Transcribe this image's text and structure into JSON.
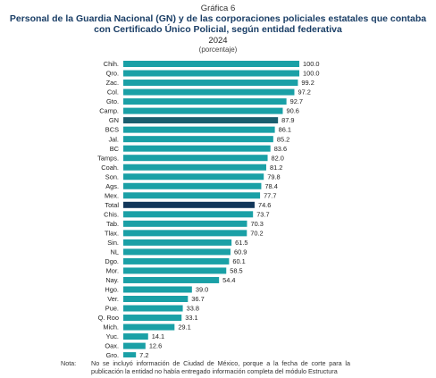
{
  "header": {
    "kicker": "Gráfica 6",
    "title_line1": "Personal de la Guardia Nacional (GN) y de las corporaciones policiales estatales que contaba",
    "title_line2": "con Certificado Único Policial, según entidad federativa",
    "year": "2024",
    "subtitle": "(porcentaje)"
  },
  "note": {
    "label": "Nota:",
    "text": "No se incluyó información de Ciudad de México, porque a la fecha de corte para la publicación la entidad no había entregado información completa del módulo Estructura"
  },
  "colors": {
    "bar": "#1aa0a6",
    "bar_gn": "#1b5e6e",
    "bar_total": "#12375a",
    "title": "#1a3e66"
  },
  "chart_data": {
    "type": "bar",
    "orientation": "horizontal",
    "categories": [
      "Chih.",
      "Qro.",
      "Zac.",
      "Col.",
      "Gto.",
      "Camp.",
      "GN",
      "BCS",
      "Jal.",
      "BC",
      "Tamps.",
      "Coah.",
      "Son.",
      "Ags.",
      "Mex.",
      "Total",
      "Chis.",
      "Tab.",
      "Tlax.",
      "Sin.",
      "NL",
      "Dgo.",
      "Mor.",
      "Nay.",
      "Hgo.",
      "Ver.",
      "Pue.",
      "Q. Roo",
      "Mich.",
      "Yuc.",
      "Oax.",
      "Gro."
    ],
    "values": [
      100.0,
      100.0,
      99.2,
      97.2,
      92.7,
      90.6,
      87.9,
      86.1,
      85.2,
      83.6,
      82.0,
      81.2,
      79.8,
      78.4,
      77.7,
      74.6,
      73.7,
      70.3,
      70.2,
      61.5,
      60.9,
      60.1,
      58.5,
      54.4,
      39.0,
      36.7,
      33.8,
      33.1,
      29.1,
      14.1,
      12.6,
      7.2
    ],
    "value_labels": [
      "100.0",
      "100.0",
      "99.2",
      "97.2",
      "92.7",
      "90.6",
      "87.9",
      "86.1",
      "85.2",
      "83.6",
      "82.0",
      "81.2",
      "79.8",
      "78.4",
      "77.7",
      "74.6",
      "73.7",
      "70.3",
      "70.2",
      "61.5",
      "60.9",
      "60.1",
      "58.5",
      "54.4",
      "39.0",
      "36.7",
      "33.8",
      "33.1",
      "29.1",
      "14.1",
      "12.6",
      "7.2"
    ],
    "highlight": {
      "GN": "bar_gn",
      "Total": "bar_total"
    },
    "xlim": [
      0,
      100
    ],
    "grid": false
  }
}
